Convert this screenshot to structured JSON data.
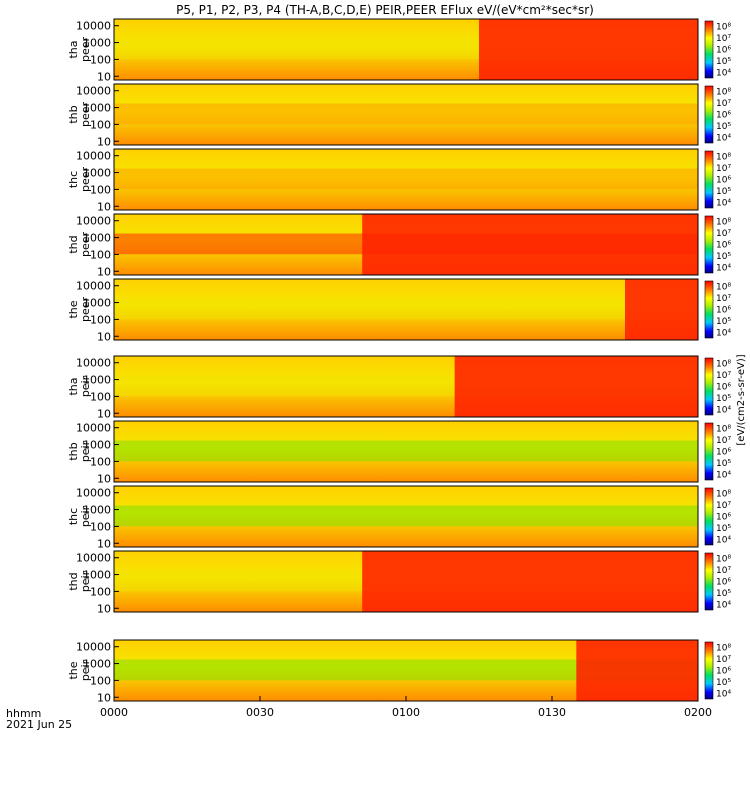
{
  "chart_data": {
    "type": "heatmap",
    "title": "P5, P1, P2, P3, P4 (TH-A,B,C,D,E) PEIR,PEER EFlux eV/(eV*cm²*sec*sr)",
    "x_tick_labels": [
      "0000",
      "0030",
      "0100",
      "0130",
      "0200"
    ],
    "x_range": [
      "00:00",
      "02:00"
    ],
    "x_label_lines": [
      "hhmm",
      "2021 Jun 25"
    ],
    "y_tick_labels": [
      "10",
      "100",
      "1000",
      "10000"
    ],
    "y_scale": "log",
    "y_range_eV": [
      6,
      25000
    ],
    "colorbar_ticks": [
      "10⁴",
      "10⁵",
      "10⁶",
      "10⁷",
      "10⁸"
    ],
    "colorbar_scale": "log",
    "colorbar_label": "[eV/(cm2-s-sr-eV)]",
    "panels": [
      {
        "name": "tha peer",
        "label_lines": [
          "tha",
          "peer"
        ],
        "dominant_level": "yellow",
        "high_flux_start": "01:15"
      },
      {
        "name": "thb peer",
        "label_lines": [
          "thb",
          "peer"
        ],
        "dominant_level": "orange",
        "high_flux_start": ""
      },
      {
        "name": "thc peer",
        "label_lines": [
          "thc",
          "peer"
        ],
        "dominant_level": "orange",
        "high_flux_start": ""
      },
      {
        "name": "thd peer",
        "label_lines": [
          "thd",
          "peer"
        ],
        "dominant_level": "red",
        "high_flux_start": "00:51"
      },
      {
        "name": "the peer",
        "label_lines": [
          "the",
          "peer"
        ],
        "dominant_level": "yellow",
        "high_flux_start": "01:45"
      },
      {
        "name": "tha peir",
        "label_lines": [
          "tha",
          "peir"
        ],
        "dominant_level": "yellow",
        "high_flux_start": "01:10"
      },
      {
        "name": "thb peir",
        "label_lines": [
          "thb",
          "peir"
        ],
        "dominant_level": "green",
        "high_flux_start": ""
      },
      {
        "name": "thc peir",
        "label_lines": [
          "thc",
          "peir"
        ],
        "dominant_level": "green",
        "high_flux_start": ""
      },
      {
        "name": "thd peir",
        "label_lines": [
          "thd",
          "peir"
        ],
        "dominant_level": "yellow",
        "high_flux_start": "00:51"
      },
      {
        "name": "the peir",
        "label_lines": [
          "the",
          "peir"
        ],
        "dominant_level": "green",
        "high_flux_start": "01:35"
      }
    ]
  }
}
